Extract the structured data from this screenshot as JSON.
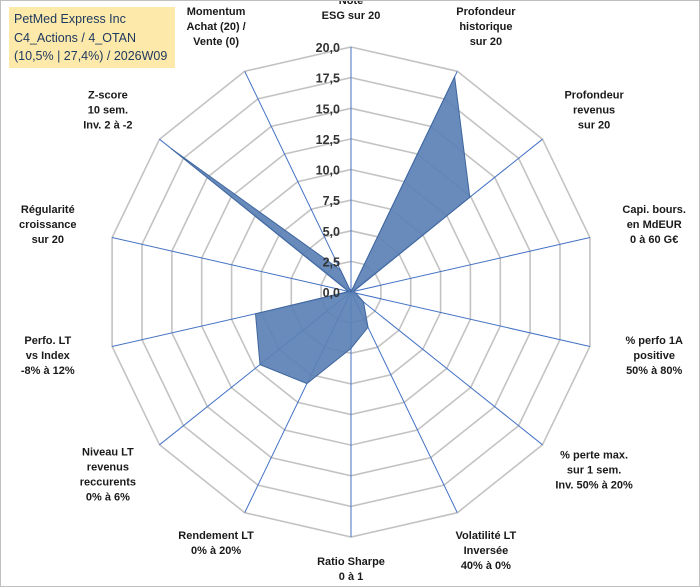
{
  "title_box": {
    "line1": "PetMed Express Inc",
    "line2": "C4_Actions / 4_OTAN",
    "line3": "(10,5% | 27,4%) / 2026W09"
  },
  "colors": {
    "fill": "#5b81b5",
    "stroke": "#3f669e",
    "grid": "#c3c3c3",
    "spoke": "#4472c4",
    "title_bg": "#fde9a9"
  },
  "chart_data": {
    "type": "radar",
    "title": "",
    "rlim": [
      0,
      20
    ],
    "ticks": [
      "0,0",
      "2,5",
      "5,0",
      "7,5",
      "10,0",
      "12,5",
      "15,0",
      "17,5",
      "20,0"
    ],
    "categories": [
      [
        "Note",
        "ESG sur 20"
      ],
      [
        "Profondeur",
        "historique",
        "sur 20"
      ],
      [
        "Profondeur",
        "revenus",
        "sur 20"
      ],
      [
        "Capi. bours.",
        "en MdEUR",
        "0 à 60 G€"
      ],
      [
        "% perfo 1A",
        "positive",
        "50% à 80%"
      ],
      [
        "% perte max.",
        "sur 1 sem.",
        "Inv. 50% à 20%"
      ],
      [
        "Volatilité LT",
        "Inversée",
        "40% à 0%"
      ],
      [
        "Ratio Sharpe",
        "0 à 1"
      ],
      [
        "Rendement LT",
        "0% à 20%"
      ],
      [
        "Niveau LT",
        "revenus",
        "reccurents",
        "0% à 6%"
      ],
      [
        "Perfo. LT",
        "vs Index",
        "-8% à 12%"
      ],
      [
        "Régularité",
        "croissance",
        "sur 20"
      ],
      [
        "Z-score",
        "10 sem.",
        "Inv. 2 à -2"
      ],
      [
        "Momentum",
        "Achat (20) /",
        "Vente (0)"
      ]
    ],
    "series": [
      {
        "name": "PetMed Express Inc",
        "values": [
          0,
          19.5,
          12.4,
          0.2,
          0.4,
          1.3,
          3.2,
          4.6,
          8.3,
          9.5,
          8.0,
          0.2,
          18.8,
          2.0
        ]
      }
    ]
  }
}
